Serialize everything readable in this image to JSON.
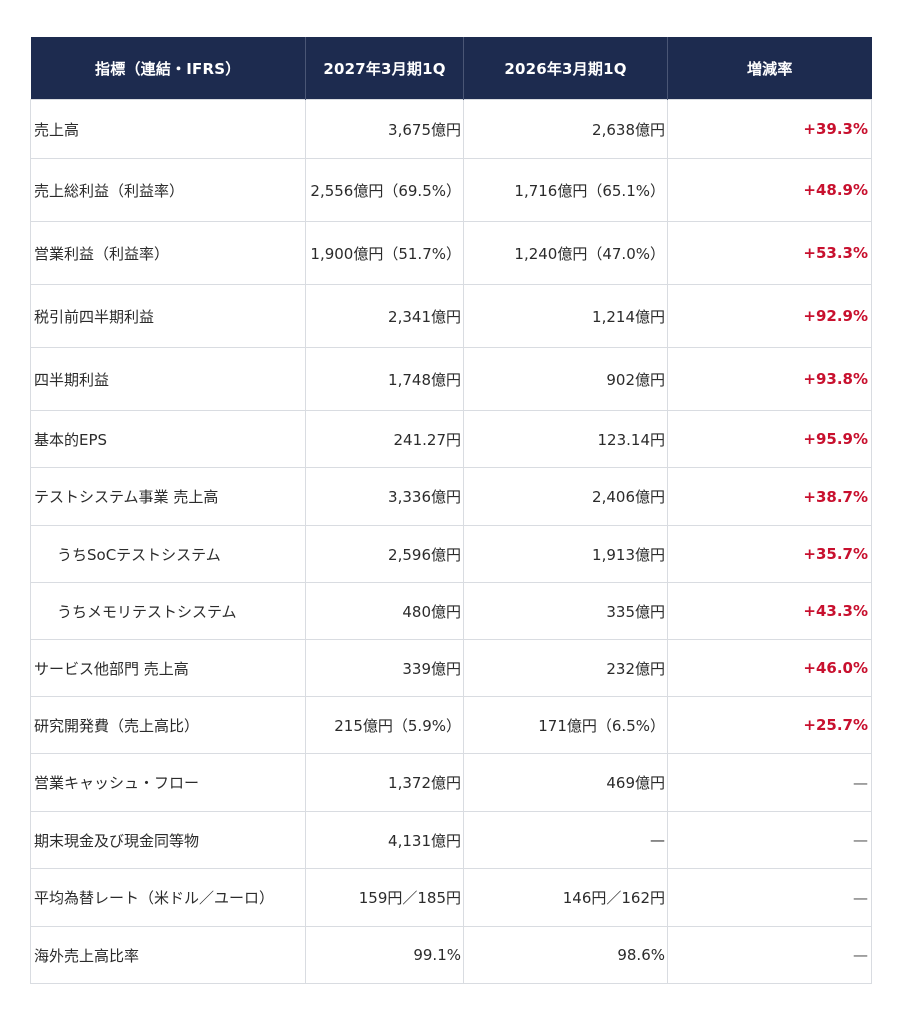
{
  "header": {
    "metric": "指標（連結・IFRS）",
    "current": "2027年3月期1Q",
    "prior": "2026年3月期1Q",
    "change": "増減率"
  },
  "rows": [
    {
      "label": "売上高",
      "current": "3,675億円",
      "prior": "2,638億円",
      "change": "+39.3%",
      "indent": false,
      "up": true
    },
    {
      "label": "売上総利益（利益率）",
      "current": "2,556億円（69.5%）",
      "prior": "1,716億円（65.1%）",
      "change": "+48.9%",
      "indent": false,
      "up": true
    },
    {
      "label": "営業利益（利益率）",
      "current": "1,900億円（51.7%）",
      "prior": "1,240億円（47.0%）",
      "change": "+53.3%",
      "indent": false,
      "up": true
    },
    {
      "label": "税引前四半期利益",
      "current": "2,341億円",
      "prior": "1,214億円",
      "change": "+92.9%",
      "indent": false,
      "up": true
    },
    {
      "label": "四半期利益",
      "current": "1,748億円",
      "prior": "902億円",
      "change": "+93.8%",
      "indent": false,
      "up": true
    },
    {
      "label": "基本的EPS",
      "current": "241.27円",
      "prior": "123.14円",
      "change": "+95.9%",
      "indent": false,
      "up": true
    },
    {
      "label": "テストシステム事業 売上高",
      "current": "3,336億円",
      "prior": "2,406億円",
      "change": "+38.7%",
      "indent": false,
      "up": true
    },
    {
      "label": "うちSoCテストシステム",
      "current": "2,596億円",
      "prior": "1,913億円",
      "change": "+35.7%",
      "indent": true,
      "up": true
    },
    {
      "label": "うちメモリテストシステム",
      "current": "480億円",
      "prior": "335億円",
      "change": "+43.3%",
      "indent": true,
      "up": true
    },
    {
      "label": "サービス他部門 売上高",
      "current": "339億円",
      "prior": "232億円",
      "change": "+46.0%",
      "indent": false,
      "up": true
    },
    {
      "label": "研究開発費（売上高比）",
      "current": "215億円（5.9%）",
      "prior": "171億円（6.5%）",
      "change": "+25.7%",
      "indent": false,
      "up": true
    },
    {
      "label": "営業キャッシュ・フロー",
      "current": "1,372億円",
      "prior": "469億円",
      "change": "—",
      "indent": false,
      "up": false
    },
    {
      "label": "期末現金及び現金同等物",
      "current": "4,131億円",
      "prior": "—",
      "change": "—",
      "indent": false,
      "up": false
    },
    {
      "label": "平均為替レート（米ドル／ユーロ）",
      "current": "159円／185円",
      "prior": "146円／162円",
      "change": "—",
      "indent": false,
      "up": false
    },
    {
      "label": "海外売上高比率",
      "current": "99.1%",
      "prior": "98.6%",
      "change": "—",
      "indent": false,
      "up": false
    }
  ],
  "colors": {
    "header_bg": "#1d2b4f",
    "increase": "#c8102e",
    "border": "#d9dce1"
  }
}
